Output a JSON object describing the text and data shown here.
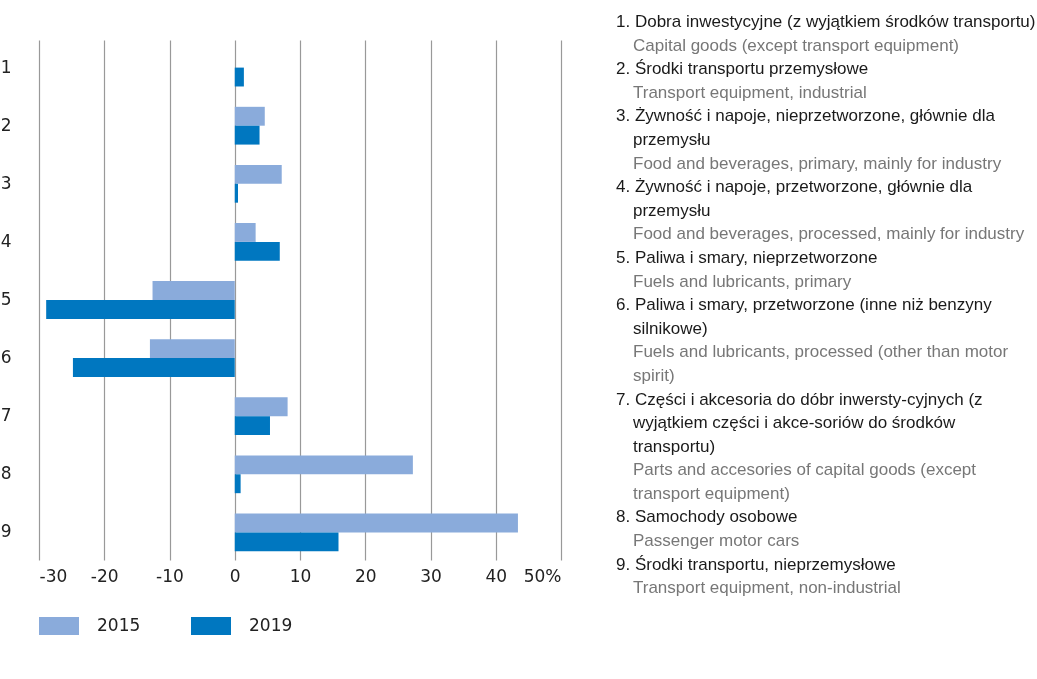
{
  "chart_data": {
    "type": "bar",
    "orientation": "horizontal",
    "categories": [
      "1",
      "2",
      "3",
      "4",
      "5",
      "6",
      "7",
      "8",
      "9"
    ],
    "series": [
      {
        "name": "2015",
        "color": "#8aabdb",
        "values": [
          null,
          4.6,
          7.2,
          3.2,
          -12.6,
          -13.0,
          8.1,
          27.3,
          43.4
        ]
      },
      {
        "name": "2019",
        "color": "#0077c0",
        "values": [
          1.4,
          3.8,
          0.5,
          6.9,
          -28.9,
          -24.8,
          5.4,
          0.9,
          15.9
        ]
      }
    ],
    "xlim": [
      -30,
      50
    ],
    "xticks": [
      -30,
      -20,
      -10,
      0,
      10,
      20,
      30,
      40,
      {
        "value": 50,
        "label": "50%"
      }
    ],
    "grid": "x",
    "legend": "bottom",
    "annotations": [
      "1. Dobra inwestycyjne (z wyjątkiem środków transportu)",
      "Capital goods (except transport equipment)",
      "2. Środki transportu przemysłowe",
      "Transport equipment, industrial",
      "3. Żywność i napoje, nieprzetworzone, głównie dla przemysłu",
      "Food and beverages, primary, mainly for industry",
      "4. Żywność i napoje, przetworzone, głównie dla przemysłu",
      "Food and beverages, processed, mainly for industry",
      "5. Paliwa i smary, nieprzetworzone",
      "Fuels and lubricants, primary",
      "6. Paliwa i smary, przetworzone (inne niż benzyny silnikowe)",
      "Fuels and lubricants, processed (other than motor spirit)",
      "7. Części i akcesoria do dóbr inwersty-cyjnych (z wyjątkiem części i akce-soriów do środków transportu)",
      "Parts and accesories of capital goods (except transport equipment)",
      "8. Samochody osobowe",
      "Passenger motor cars",
      "9. Środki transportu, nieprzemysłowe",
      "Transport equipment, non-industrial"
    ]
  }
}
